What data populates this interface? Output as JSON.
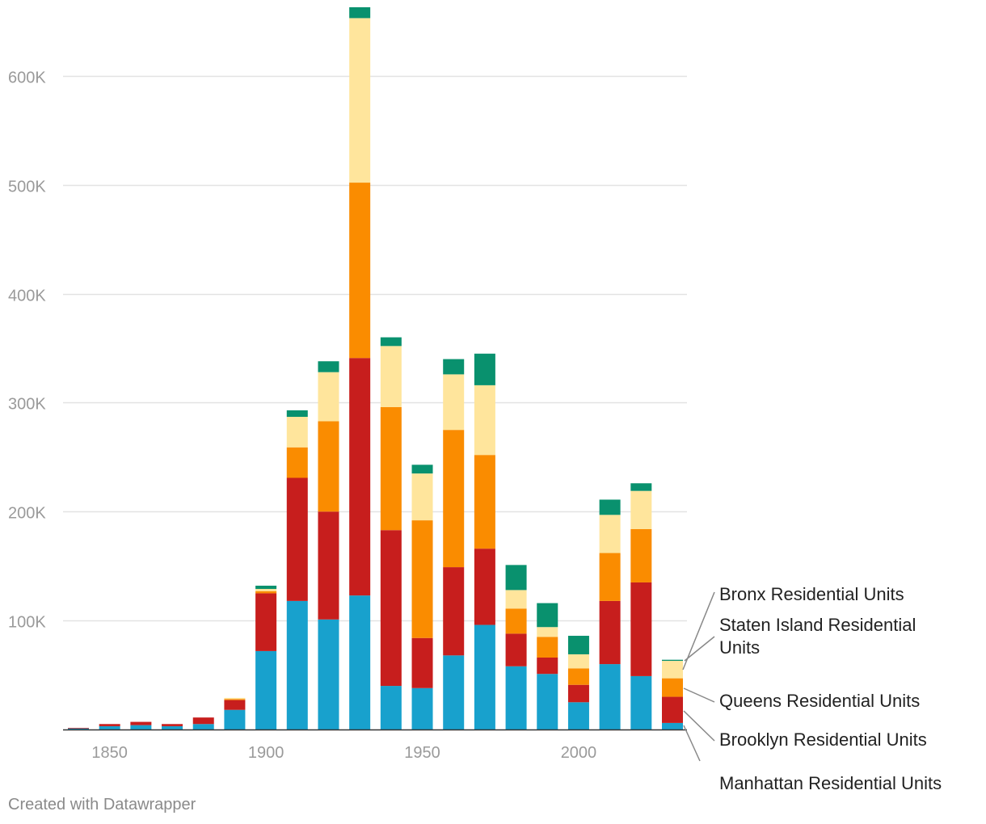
{
  "credit": "Created with Datawrapper",
  "chart_data": {
    "type": "bar",
    "stacked": true,
    "x": [
      1840,
      1850,
      1860,
      1870,
      1880,
      1890,
      1900,
      1910,
      1920,
      1930,
      1940,
      1950,
      1960,
      1970,
      1980,
      1990,
      2000,
      2010,
      2020,
      2030
    ],
    "x_ticks": [
      1850,
      1900,
      1950,
      2000
    ],
    "ylim": [
      0,
      660000
    ],
    "y_ticks": [
      100000,
      200000,
      300000,
      400000,
      500000,
      600000
    ],
    "y_tick_labels": [
      "100K",
      "200K",
      "300K",
      "400K",
      "500K",
      "600K"
    ],
    "grid": true,
    "legend_position": "right, labels with leader lines",
    "series": [
      {
        "name": "Manhattan Residential Units",
        "color": "#18a1cd",
        "values": [
          1000,
          3000,
          4000,
          3000,
          5000,
          18000,
          72000,
          118000,
          101000,
          123000,
          40000,
          38000,
          68000,
          96000,
          58000,
          51000,
          25000,
          60000,
          49000,
          6000
        ]
      },
      {
        "name": "Brooklyn Residential Units",
        "color": "#c71e1d",
        "values": [
          500,
          2000,
          3000,
          2000,
          6000,
          9000,
          53000,
          113000,
          99000,
          218000,
          143000,
          46000,
          81000,
          70000,
          30000,
          15000,
          16000,
          58000,
          86000,
          24000
        ]
      },
      {
        "name": "Queens Residential Units",
        "color": "#fa8c00",
        "values": [
          0,
          0,
          0,
          0,
          0,
          1000,
          2000,
          28000,
          83000,
          161000,
          113000,
          108000,
          126000,
          86000,
          23000,
          19000,
          15000,
          44000,
          49000,
          17000
        ]
      },
      {
        "name": "Staten Island Residential Units",
        "color": "#ffe59c",
        "values": [
          0,
          0,
          0,
          0,
          0,
          1000,
          2000,
          28000,
          45000,
          151000,
          56000,
          43000,
          51000,
          64000,
          17000,
          9000,
          13000,
          35000,
          35000,
          16000
        ]
      },
      {
        "name": "Bronx Residential Units",
        "color": "#09916e",
        "values": [
          0,
          0,
          0,
          0,
          0,
          0,
          3000,
          6000,
          10000,
          10000,
          8000,
          8000,
          14000,
          29000,
          23000,
          22000,
          17000,
          14000,
          7000,
          1000
        ]
      }
    ]
  }
}
